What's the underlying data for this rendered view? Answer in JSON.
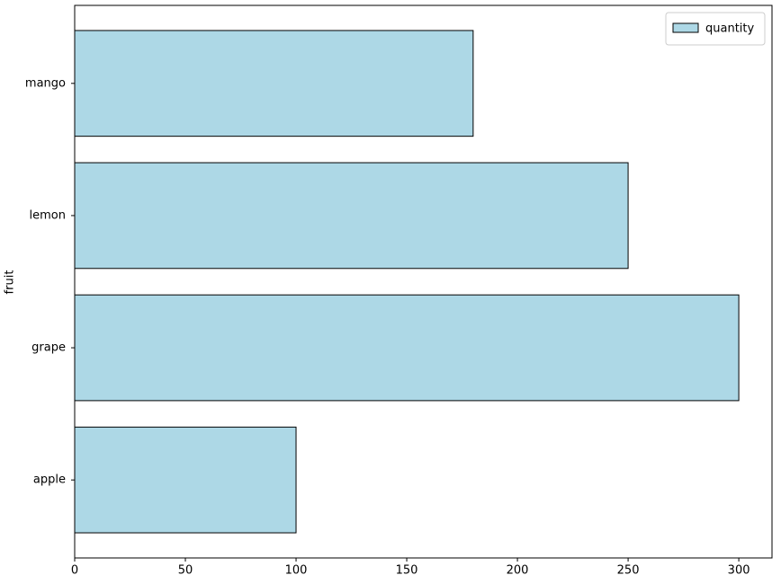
{
  "chart_data": {
    "type": "barh",
    "y_label": "fruit",
    "categories": [
      "apple",
      "grape",
      "lemon",
      "mango"
    ],
    "series": [
      {
        "name": "quantity",
        "color": "#add8e6",
        "edgecolor": "#000000",
        "values": [
          100,
          300,
          250,
          180
        ]
      }
    ],
    "xlim": [
      0,
      315
    ],
    "xticks": [
      0,
      50,
      100,
      150,
      200,
      250,
      300
    ],
    "grid": false,
    "legend": "upper right"
  }
}
